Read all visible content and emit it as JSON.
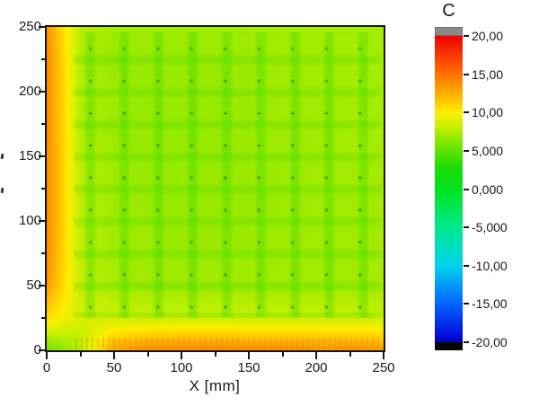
{
  "figure": {
    "background_color": "#ffffff",
    "plot": {
      "x_axis": {
        "label": "X [mm]",
        "tick_labels": [
          "0",
          "50",
          "100",
          "150",
          "200",
          "250"
        ]
      },
      "y_axis": {
        "label": "",
        "tick_labels": [
          "250",
          "200",
          "150",
          "100",
          "50",
          "0"
        ]
      }
    },
    "colorbar": {
      "title": "C",
      "tick_labels": [
        "20,00",
        "15,00",
        "10,00",
        "5,000",
        "0,000",
        "-5,000",
        "-10,00",
        "-15,00",
        "-20,00"
      ],
      "over_cap_color": "#8a8a8a",
      "under_cap_color": "#060606"
    }
  },
  "chart_data": {
    "type": "heatmap",
    "title": "",
    "xlabel": "X [mm]",
    "ylabel": "",
    "unit": "C",
    "x_range": [
      0,
      250
    ],
    "y_range": [
      0,
      250
    ],
    "x": [
      0,
      25,
      50,
      75,
      100,
      125,
      150,
      175,
      200,
      225,
      250
    ],
    "y": [
      250,
      225,
      200,
      175,
      150,
      125,
      100,
      75,
      50,
      25,
      0
    ],
    "values": [
      [
        13.5,
        7.6,
        7.1,
        7.0,
        7.1,
        7.0,
        7.1,
        7.1,
        7.1,
        7.1,
        7.1
      ],
      [
        14.0,
        7.4,
        6.7,
        6.9,
        6.7,
        6.9,
        6.8,
        7.0,
        7.1,
        7.1,
        7.1
      ],
      [
        14.0,
        7.5,
        7.0,
        6.7,
        6.9,
        6.7,
        6.9,
        7.0,
        7.1,
        7.1,
        7.1
      ],
      [
        14.0,
        7.4,
        6.8,
        6.8,
        6.7,
        6.8,
        6.9,
        7.0,
        7.0,
        7.1,
        7.1
      ],
      [
        14.0,
        7.7,
        7.0,
        6.7,
        6.8,
        6.7,
        6.9,
        6.9,
        7.0,
        7.1,
        7.1
      ],
      [
        14.0,
        7.7,
        6.9,
        6.8,
        6.7,
        6.8,
        6.8,
        6.9,
        7.0,
        7.0,
        7.1
      ],
      [
        14.0,
        7.8,
        7.0,
        6.9,
        6.8,
        6.8,
        6.9,
        6.9,
        7.0,
        7.0,
        7.1
      ],
      [
        13.8,
        7.8,
        7.0,
        6.9,
        6.9,
        6.9,
        6.9,
        7.0,
        7.0,
        7.0,
        7.1
      ],
      [
        13.2,
        8.0,
        7.2,
        7.0,
        7.0,
        7.0,
        7.0,
        7.0,
        7.0,
        7.1,
        7.1
      ],
      [
        10.8,
        8.6,
        8.2,
        8.1,
        8.1,
        8.1,
        8.1,
        8.1,
        8.1,
        8.1,
        8.0
      ],
      [
        5.5,
        7.5,
        12.8,
        13.8,
        14.0,
        14.0,
        13.8,
        13.8,
        13.6,
        13.6,
        13.2
      ]
    ],
    "colorbar": {
      "min": -20,
      "max": 20,
      "ticks": [
        20,
        15,
        10,
        5,
        0,
        -5,
        -10,
        -15,
        -20
      ],
      "legend_position": "right"
    },
    "palette": [
      {
        "value": 20,
        "color": "#ee0000"
      },
      {
        "value": 16,
        "color": "#ff5a00"
      },
      {
        "value": 13,
        "color": "#ffa200"
      },
      {
        "value": 10,
        "color": "#ffee00"
      },
      {
        "value": 8,
        "color": "#c4f000"
      },
      {
        "value": 6,
        "color": "#7ce600"
      },
      {
        "value": 3,
        "color": "#22dc00"
      },
      {
        "value": 0,
        "color": "#00e41e"
      },
      {
        "value": -5,
        "color": "#00e88e"
      },
      {
        "value": -10,
        "color": "#00d2ec"
      },
      {
        "value": -15,
        "color": "#0064ff"
      },
      {
        "value": -19,
        "color": "#0010dc"
      },
      {
        "value": -20,
        "color": "#0000c8"
      }
    ],
    "grid": false
  }
}
